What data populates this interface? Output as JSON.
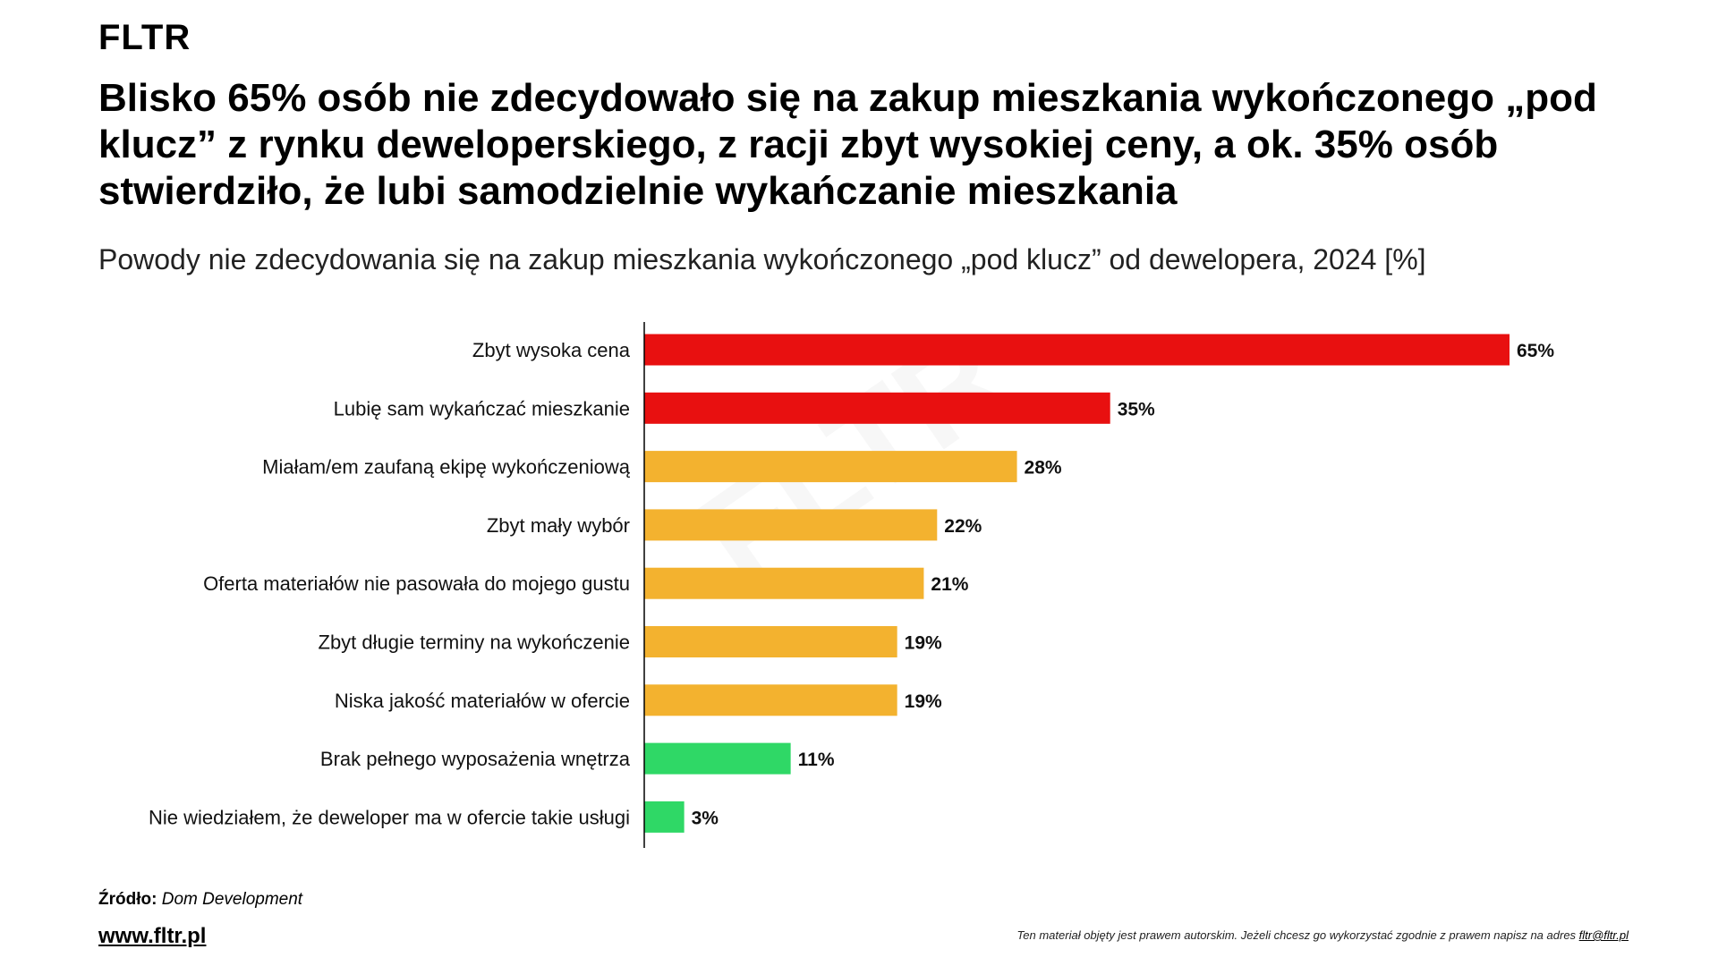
{
  "logo": "FLTR",
  "title": "Blisko 65% osób nie zdecydowało się na zakup mieszkania wykończonego „pod klucz” z rynku deweloperskiego, z racji zbyt wysokiej ceny, a ok. 35% osób stwierdziło, że lubi samodzielnie wykańczanie mieszkania",
  "subtitle": "Powody nie zdecydowania się na zakup mieszkania wykończonego „pod klucz” od dewelopera, 2024 [%]",
  "chart_data": {
    "type": "bar",
    "orientation": "horizontal",
    "categories": [
      "Zbyt wysoka cena",
      "Lubię sam wykańczać mieszkanie",
      "Miałam/em zaufaną ekipę wykończeniową",
      "Zbyt mały wybór",
      "Oferta materiałów nie pasowała do mojego gustu",
      "Zbyt długie terminy na wykończenie",
      "Niska jakość materiałów w ofercie",
      "Brak pełnego wyposażenia wnętrza",
      "Nie wiedziałem, że deweloper ma w ofercie takie usługi"
    ],
    "values": [
      65,
      35,
      28,
      22,
      21,
      19,
      19,
      11,
      3
    ],
    "labels": [
      "65%",
      "35%",
      "28%",
      "22%",
      "21%",
      "19%",
      "19%",
      "11%",
      "3%"
    ],
    "colors": [
      "#e81010",
      "#e81010",
      "#f3b22f",
      "#f3b22f",
      "#f3b22f",
      "#f3b22f",
      "#f3b22f",
      "#2fd866",
      "#2fd866"
    ],
    "xlim": [
      0,
      65
    ],
    "grid": false
  },
  "footer": {
    "source_label": "Źródło:",
    "source_value": "Dom Development",
    "website": "www.fltr.pl",
    "copyright": "Ten materiał objęty jest prawem  autorskim. Jeżeli chcesz go wykorzystać zgodnie z prawem  napisz na adres ",
    "email": "fltr@fltr.pl"
  }
}
